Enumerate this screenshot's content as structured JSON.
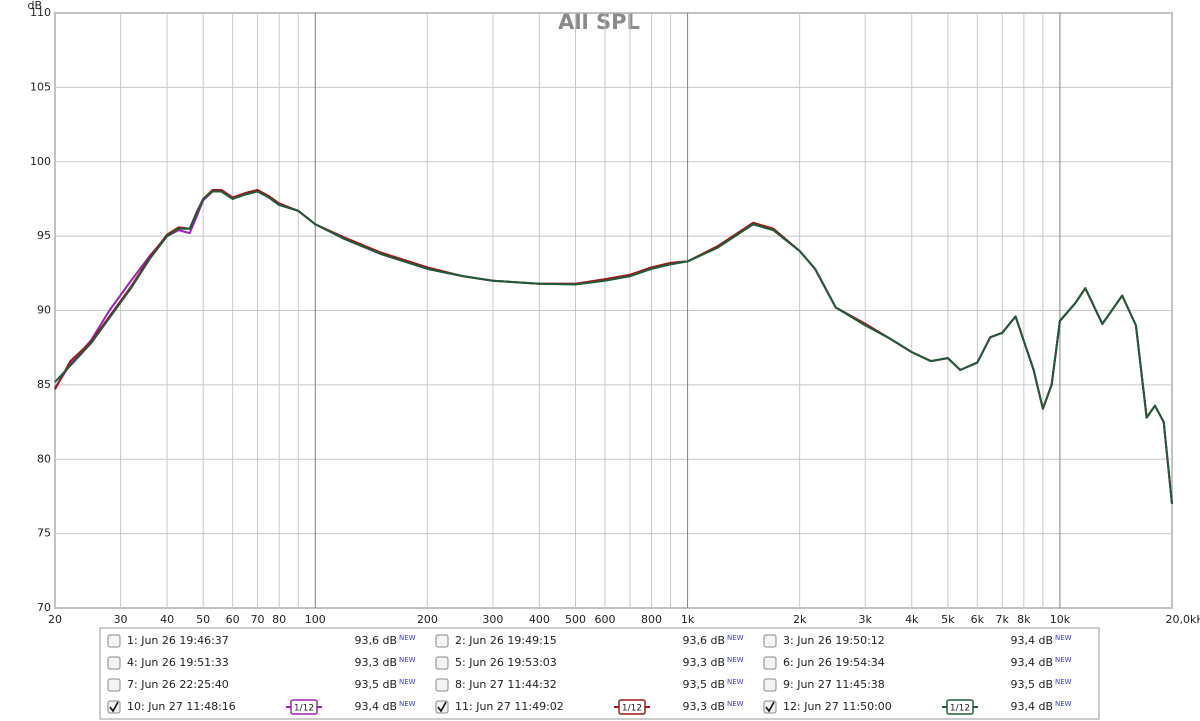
{
  "chart_data": {
    "type": "line",
    "title": "All SPL",
    "y_unit": "dB",
    "log_x": true,
    "grid": true,
    "xlim": [
      20,
      20000
    ],
    "xticks": [
      20,
      30,
      40,
      50,
      60,
      70,
      80,
      100,
      200,
      300,
      400,
      500,
      600,
      800,
      {
        "value": 1000,
        "label": "1k"
      },
      {
        "value": 2000,
        "label": "2k"
      },
      {
        "value": 3000,
        "label": "3k"
      },
      {
        "value": 4000,
        "label": "4k"
      },
      {
        "value": 5000,
        "label": "5k"
      },
      {
        "value": 6000,
        "label": "6k"
      },
      {
        "value": 7000,
        "label": "7k"
      },
      {
        "value": 8000,
        "label": "8k"
      },
      {
        "value": 10000,
        "label": "10k"
      },
      {
        "value": 20000,
        "label": "20,0kHz"
      }
    ],
    "x_minor_grid": [
      90,
      700,
      900,
      9000
    ],
    "ylim": [
      70,
      110
    ],
    "yticks": [
      70,
      75,
      80,
      85,
      90,
      95,
      100,
      105,
      110
    ],
    "x": [
      20,
      22,
      25,
      28,
      32,
      36,
      40,
      43,
      46,
      48,
      50,
      53,
      56,
      60,
      65,
      70,
      75,
      80,
      90,
      100,
      120,
      150,
      200,
      250,
      300,
      400,
      500,
      600,
      700,
      800,
      900,
      1000,
      1200,
      1500,
      1700,
      2000,
      2200,
      2500,
      3000,
      3500,
      4000,
      4500,
      5000,
      5400,
      6000,
      6500,
      7000,
      7600,
      8500,
      9000,
      9500,
      10000,
      11000,
      11700,
      13000,
      14700,
      16000,
      17100,
      18000,
      19000,
      20000
    ],
    "series": [
      {
        "name": "10: Jun 27 11:48:16",
        "color": "#a020b8",
        "checked": true,
        "level": "93,4 dB",
        "smoothing": "1/12",
        "values": [
          84.8,
          86.4,
          88.0,
          90.0,
          92.0,
          93.7,
          95.0,
          95.4,
          95.2,
          96.3,
          97.4,
          98.0,
          98.0,
          97.5,
          97.9,
          98.1,
          97.6,
          97.1,
          96.7,
          95.8,
          94.8,
          93.8,
          92.8,
          92.3,
          92.0,
          91.8,
          91.8,
          92.1,
          92.4,
          92.8,
          93.2,
          93.3,
          94.3,
          95.8,
          95.4,
          94.0,
          92.8,
          90.2,
          89.1,
          88.1,
          87.2,
          86.6,
          86.8,
          86.0,
          86.5,
          88.2,
          88.5,
          89.6,
          86.0,
          83.4,
          85.0,
          89.3,
          90.5,
          91.5,
          89.1,
          91.0,
          89.0,
          82.8,
          83.6,
          82.5,
          77.0
        ]
      },
      {
        "name": "11: Jun 27 11:49:02",
        "color": "#a01818",
        "checked": true,
        "level": "93,3 dB",
        "smoothing": "1/12",
        "values": [
          84.7,
          86.6,
          87.9,
          89.6,
          91.6,
          93.6,
          95.1,
          95.6,
          95.5,
          96.6,
          97.5,
          98.1,
          98.1,
          97.6,
          97.9,
          98.1,
          97.7,
          97.2,
          96.7,
          95.8,
          94.9,
          93.9,
          92.9,
          92.3,
          92.0,
          91.8,
          91.8,
          92.1,
          92.4,
          92.9,
          93.2,
          93.3,
          94.3,
          95.9,
          95.5,
          94.0,
          92.8,
          90.2,
          89.1,
          88.1,
          87.2,
          86.6,
          86.8,
          86.0,
          86.5,
          88.2,
          88.5,
          89.6,
          86.0,
          83.4,
          85.0,
          89.3,
          90.5,
          91.5,
          89.1,
          91.0,
          89.0,
          82.8,
          83.6,
          82.5,
          77.0
        ]
      },
      {
        "name": "12: Jun 27 11:50:00",
        "color": "#1f5c3a",
        "checked": true,
        "level": "93,4 dB",
        "smoothing": "1/12",
        "values": [
          85.2,
          86.3,
          87.8,
          89.5,
          91.5,
          93.5,
          95.0,
          95.5,
          95.5,
          96.5,
          97.5,
          98.0,
          98.0,
          97.5,
          97.8,
          98.0,
          97.6,
          97.1,
          96.7,
          95.8,
          94.8,
          93.8,
          92.8,
          92.3,
          92.0,
          91.8,
          91.75,
          92.0,
          92.3,
          92.8,
          93.1,
          93.3,
          94.2,
          95.8,
          95.4,
          94.0,
          92.8,
          90.2,
          89.0,
          88.1,
          87.2,
          86.6,
          86.8,
          86.0,
          86.5,
          88.2,
          88.5,
          89.6,
          86.0,
          83.4,
          85.0,
          89.3,
          90.5,
          91.5,
          89.1,
          91.0,
          89.0,
          82.8,
          83.6,
          82.5,
          77.0
        ]
      }
    ],
    "hidden_series": [
      {
        "name": "1: Jun 26 19:46:37",
        "color": "#8b1a1a",
        "checked": false,
        "level": "93,6 dB"
      },
      {
        "name": "2: Jun 26 19:49:15",
        "color": "#2e7d32",
        "checked": false,
        "level": "93,6 dB"
      },
      {
        "name": "3: Jun 26 19:50:12",
        "color": "#3a5fb0",
        "checked": false,
        "level": "93,4 dB"
      },
      {
        "name": "4: Jun 26 19:51:33",
        "color": "#c87020",
        "checked": false,
        "level": "93,3 dB"
      },
      {
        "name": "5: Jun 26 19:53:03",
        "color": "#2e8b3e",
        "checked": false,
        "level": "93,3 dB"
      },
      {
        "name": "6: Jun 26 19:54:34",
        "color": "#3a70a8",
        "checked": false,
        "level": "93,4 dB"
      },
      {
        "name": "7: Jun 26 22:25:40",
        "color": "#8b4a10",
        "checked": false,
        "level": "93,5 dB"
      },
      {
        "name": "8: Jun 27 11:44:32",
        "color": "#2e8b6e",
        "checked": false,
        "level": "93,5 dB"
      },
      {
        "name": "9: Jun 27 11:45:38",
        "color": "#7a2fa0",
        "checked": false,
        "level": "93,5 dB"
      }
    ],
    "legend_badge": "NEW"
  }
}
